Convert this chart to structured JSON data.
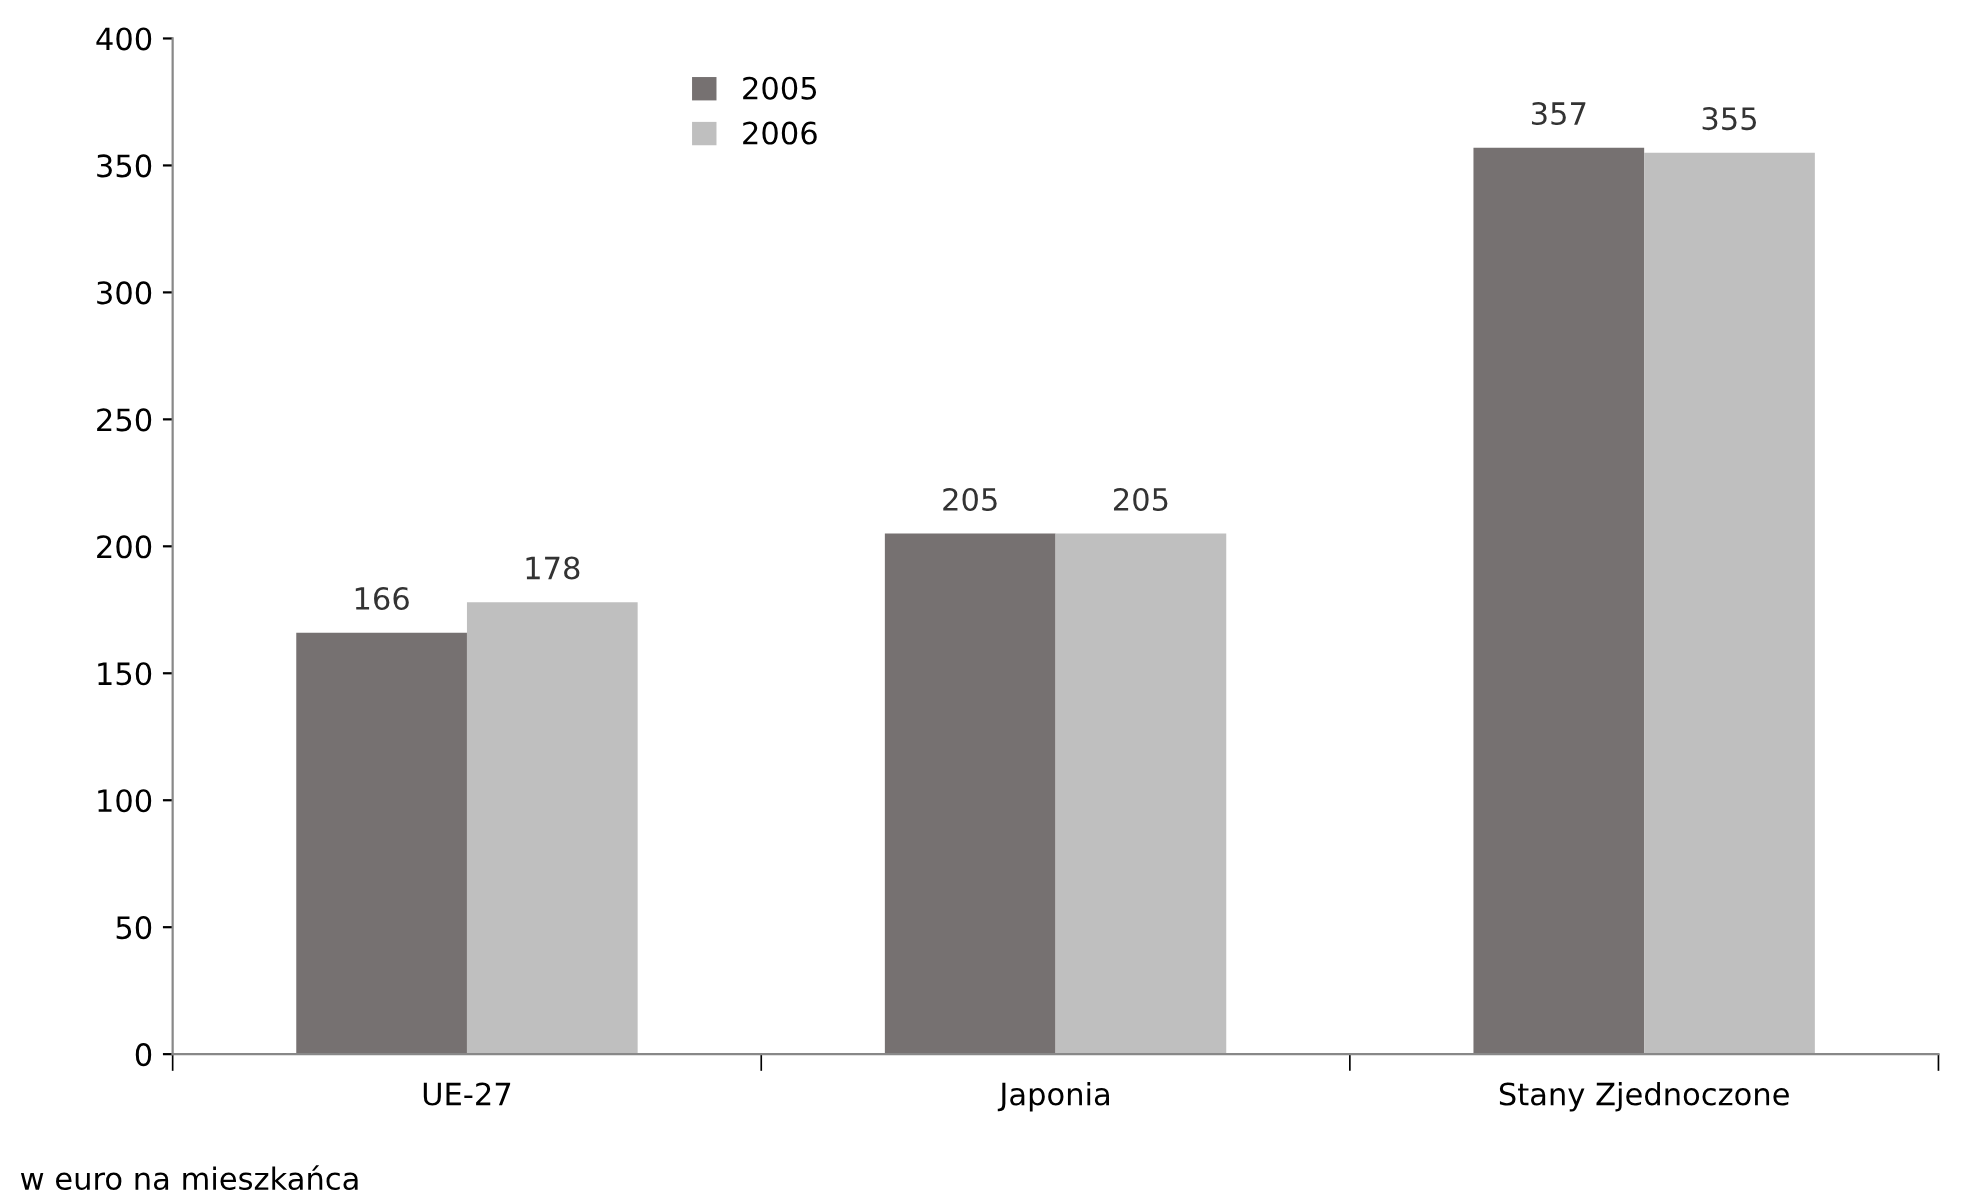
{
  "chart_data": {
    "type": "bar",
    "ylabel": "w euro na mieszkańca",
    "categories": [
      "UE-27",
      "Japonia",
      "Stany Zjednoczone"
    ],
    "series": [
      {
        "name": "2005",
        "color": "#767171",
        "values": [
          166,
          205,
          357
        ]
      },
      {
        "name": "2006",
        "color": "#bfbfbf",
        "values": [
          178,
          205,
          355
        ]
      }
    ],
    "ylim": [
      0,
      400
    ],
    "yticks": [
      0,
      50,
      100,
      150,
      200,
      250,
      300,
      350,
      400
    ],
    "grid": false,
    "legend": "top",
    "data_labels": true
  }
}
